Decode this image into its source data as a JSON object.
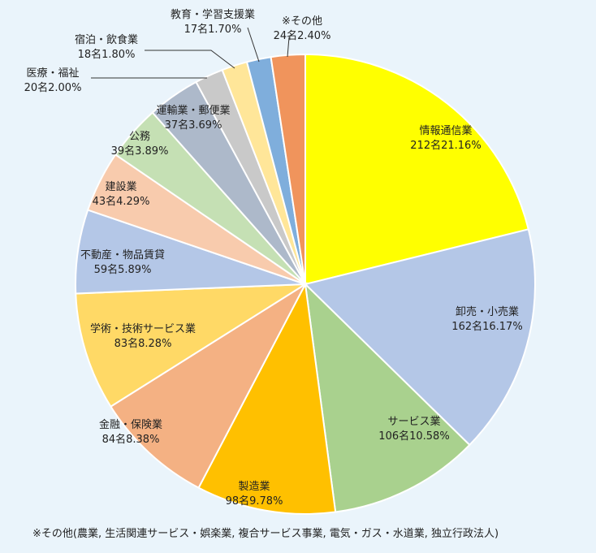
{
  "chart_data": {
    "type": "pie",
    "start_angle_deg": 0,
    "direction": "clockwise",
    "slices": [
      {
        "name": "情報通信業",
        "count": 212,
        "percent": 21.16,
        "count_text": "212名",
        "percent_text": "21.16%",
        "color": "#ffff00"
      },
      {
        "name": "卸売・小売業",
        "count": 162,
        "percent": 16.17,
        "count_text": "162名",
        "percent_text": "16.17%",
        "color": "#b4c7e7"
      },
      {
        "name": "サービス業",
        "count": 106,
        "percent": 10.58,
        "count_text": "106名",
        "percent_text": "10.58%",
        "color": "#a9d18e"
      },
      {
        "name": "製造業",
        "count": 98,
        "percent": 9.78,
        "count_text": "98名",
        "percent_text": "9.78%",
        "color": "#ffc000"
      },
      {
        "name": "金融・保険業",
        "count": 84,
        "percent": 8.38,
        "count_text": "84名",
        "percent_text": "8.38%",
        "color": "#f4b183"
      },
      {
        "name": "学術・技術サービス業",
        "count": 83,
        "percent": 8.28,
        "count_text": "83名",
        "percent_text": "8.28%",
        "color": "#ffd966"
      },
      {
        "name": "不動産・物品賃貸",
        "count": 59,
        "percent": 5.89,
        "count_text": "59名",
        "percent_text": "5.89%",
        "color": "#b4c7e7"
      },
      {
        "name": "建設業",
        "count": 43,
        "percent": 4.29,
        "count_text": "43名",
        "percent_text": "4.29%",
        "color": "#f8cbad"
      },
      {
        "name": "公務",
        "count": 39,
        "percent": 3.89,
        "count_text": "39名",
        "percent_text": "3.89%",
        "color": "#c5e0b4"
      },
      {
        "name": "運輸業・郵便業",
        "count": 37,
        "percent": 3.69,
        "count_text": "37名",
        "percent_text": "3.69%",
        "color": "#adb9ca"
      },
      {
        "name": "医療・福祉",
        "count": 20,
        "percent": 2.0,
        "count_text": "20名",
        "percent_text": "2.00%",
        "color": "#c9c9c9"
      },
      {
        "name": "宿泊・飲食業",
        "count": 18,
        "percent": 1.8,
        "count_text": "18名",
        "percent_text": "1.80%",
        "color": "#ffe699"
      },
      {
        "name": "教育・学習支援業",
        "count": 17,
        "percent": 1.7,
        "count_text": "17名",
        "percent_text": "1.70%",
        "color": "#7faedc"
      },
      {
        "name": "※その他",
        "count": 24,
        "percent": 2.4,
        "count_text": "24名",
        "percent_text": "2.40%",
        "color": "#f0945c"
      }
    ],
    "footnote": "※その他(農業, 生活関連サービス・娯楽業, 複合サービス事業, 電気・ガス・水道業, 独立行政法人)"
  }
}
